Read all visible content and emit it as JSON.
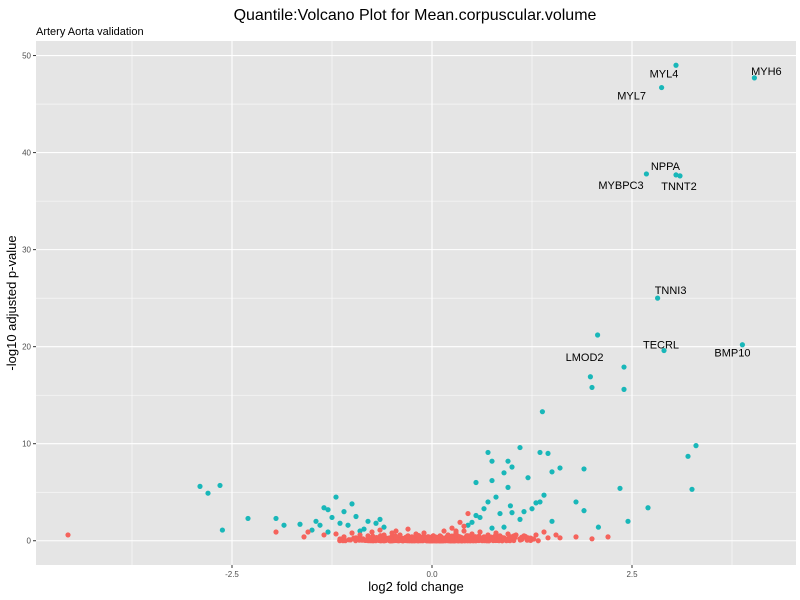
{
  "chart_data": {
    "type": "scatter",
    "title": "Quantile:Volcano Plot for Mean.corpuscular.volume",
    "subtitle": "Artery Aorta validation",
    "xlabel": "log2 fold change",
    "ylabel": "-log10 adjusted p-value",
    "xlim": [
      -4.95,
      4.55
    ],
    "ylim": [
      -2.5,
      51.5
    ],
    "x_ticks": [
      -2.5,
      0.0,
      2.5
    ],
    "x_tick_labels": [
      "-2.5",
      "0.0",
      "2.5"
    ],
    "y_ticks": [
      0,
      10,
      20,
      30,
      40,
      50
    ],
    "y_tick_labels": [
      "0",
      "10",
      "20",
      "30",
      "40",
      "50"
    ],
    "grid": true,
    "legend": "none",
    "colors": {
      "panel": "#e5e5e5",
      "grid_major": "#ffffff",
      "significant": "#19b7b9",
      "not_significant": "#f5635c"
    },
    "series": [
      {
        "color_key": "significant",
        "points": [
          [
            3.05,
            49.0
          ],
          [
            4.03,
            47.7
          ],
          [
            2.87,
            46.7
          ],
          [
            2.68,
            37.8
          ],
          [
            3.05,
            37.7
          ],
          [
            3.1,
            37.6
          ],
          [
            2.82,
            25.0
          ],
          [
            2.07,
            21.2
          ],
          [
            3.88,
            20.2
          ],
          [
            2.9,
            19.6
          ],
          [
            2.4,
            17.9
          ],
          [
            1.98,
            16.9
          ],
          [
            2.0,
            15.8
          ],
          [
            2.4,
            15.6
          ],
          [
            1.38,
            13.3
          ],
          [
            3.3,
            9.8
          ],
          [
            3.2,
            8.7
          ],
          [
            3.25,
            5.3
          ],
          [
            2.35,
            5.4
          ],
          [
            2.7,
            3.4
          ],
          [
            2.45,
            2.0
          ],
          [
            2.08,
            1.4
          ],
          [
            1.9,
            7.4
          ],
          [
            1.8,
            4.0
          ],
          [
            1.9,
            3.1
          ],
          [
            1.6,
            7.5
          ],
          [
            1.5,
            2.0
          ],
          [
            1.35,
            9.1
          ],
          [
            1.1,
            9.6
          ],
          [
            1.0,
            7.6
          ],
          [
            0.95,
            8.2
          ],
          [
            0.9,
            7.0
          ],
          [
            0.75,
            8.2
          ],
          [
            0.7,
            9.1
          ],
          [
            0.75,
            6.2
          ],
          [
            1.2,
            6.5
          ],
          [
            0.95,
            5.5
          ],
          [
            0.98,
            3.6
          ],
          [
            1.15,
            3.0
          ],
          [
            1.3,
            3.9
          ],
          [
            1.4,
            4.7
          ],
          [
            1.35,
            4.0
          ],
          [
            1.25,
            3.3
          ],
          [
            1.1,
            2.2
          ],
          [
            1.0,
            2.9
          ],
          [
            0.8,
            4.5
          ],
          [
            0.7,
            4.0
          ],
          [
            0.55,
            6.0
          ],
          [
            0.6,
            2.4
          ],
          [
            0.45,
            1.6
          ],
          [
            1.45,
            9.0
          ],
          [
            1.5,
            7.1
          ],
          [
            0.9,
            1.4
          ],
          [
            0.85,
            2.8
          ],
          [
            -2.9,
            5.6
          ],
          [
            -2.8,
            4.9
          ],
          [
            -2.65,
            5.7
          ],
          [
            -2.62,
            1.1
          ],
          [
            -2.3,
            2.3
          ],
          [
            -1.95,
            2.3
          ],
          [
            -1.85,
            1.6
          ],
          [
            -1.65,
            1.7
          ],
          [
            -1.2,
            4.5
          ],
          [
            -1.35,
            3.4
          ],
          [
            -1.3,
            3.2
          ],
          [
            -1.45,
            2.0
          ],
          [
            -1.1,
            3.0
          ],
          [
            -1.0,
            3.8
          ],
          [
            -1.15,
            1.8
          ],
          [
            -0.95,
            2.5
          ],
          [
            -0.8,
            2.0
          ],
          [
            -1.05,
            1.6
          ],
          [
            -0.7,
            1.8
          ],
          [
            -0.85,
            1.2
          ],
          [
            -1.25,
            2.4
          ],
          [
            -1.4,
            1.6
          ],
          [
            -1.5,
            1.1
          ],
          [
            -0.65,
            2.2
          ],
          [
            -0.9,
            1.0
          ],
          [
            -1.3,
            0.9
          ],
          [
            -0.6,
            1.4
          ],
          [
            0.5,
            1.9
          ],
          [
            0.55,
            2.6
          ],
          [
            0.65,
            3.3
          ],
          [
            0.75,
            1.3
          ]
        ]
      },
      {
        "color_key": "not_significant",
        "points": [
          [
            -4.55,
            0.6
          ],
          [
            -1.95,
            0.9
          ],
          [
            -1.6,
            0.4
          ],
          [
            -1.55,
            0.9
          ],
          [
            -1.35,
            0.6
          ],
          [
            -1.2,
            0.7
          ],
          [
            -1.1,
            0.4
          ],
          [
            -1.0,
            0.8
          ],
          [
            -0.95,
            0.3
          ],
          [
            -0.9,
            0.6
          ],
          [
            -0.8,
            0.5
          ],
          [
            -0.75,
            0.9
          ],
          [
            -0.7,
            0.3
          ],
          [
            -0.6,
            0.6
          ],
          [
            -0.55,
            0.2
          ],
          [
            -0.5,
            0.8
          ],
          [
            -0.45,
            0.4
          ],
          [
            -0.4,
            0.6
          ],
          [
            -0.35,
            0.2
          ],
          [
            -0.3,
            0.5
          ],
          [
            -0.25,
            0.3
          ],
          [
            -0.2,
            0.7
          ],
          [
            -0.15,
            0.1
          ],
          [
            -0.1,
            0.4
          ],
          [
            -0.05,
            0.2
          ],
          [
            0.0,
            0.1
          ],
          [
            0.05,
            0.3
          ],
          [
            0.1,
            0.5
          ],
          [
            0.15,
            0.2
          ],
          [
            0.2,
            0.6
          ],
          [
            0.25,
            0.3
          ],
          [
            0.3,
            0.8
          ],
          [
            0.35,
            0.4
          ],
          [
            0.4,
            1.0
          ],
          [
            0.45,
            0.5
          ],
          [
            0.5,
            0.7
          ],
          [
            0.55,
            0.3
          ],
          [
            0.6,
            0.9
          ],
          [
            0.65,
            0.4
          ],
          [
            0.7,
            0.6
          ],
          [
            0.75,
            0.2
          ],
          [
            0.8,
            0.8
          ],
          [
            0.85,
            0.5
          ],
          [
            0.9,
            0.3
          ],
          [
            0.95,
            0.7
          ],
          [
            1.0,
            0.4
          ],
          [
            1.05,
            0.6
          ],
          [
            1.1,
            0.2
          ],
          [
            1.15,
            0.5
          ],
          [
            1.2,
            0.3
          ],
          [
            1.3,
            0.6
          ],
          [
            1.4,
            0.9
          ],
          [
            1.45,
            0.3
          ],
          [
            1.55,
            0.6
          ],
          [
            1.6,
            0.3
          ],
          [
            1.8,
            0.4
          ],
          [
            2.0,
            0.2
          ],
          [
            2.2,
            0.4
          ],
          [
            0.25,
            1.3
          ],
          [
            0.35,
            1.9
          ],
          [
            0.45,
            2.8
          ],
          [
            0.4,
            1.5
          ],
          [
            0.3,
            1.0
          ],
          [
            -0.3,
            1.2
          ],
          [
            -0.1,
            0.8
          ],
          [
            0.15,
            1.0
          ],
          [
            -0.45,
            1.0
          ],
          [
            -0.65,
            1.1
          ]
        ],
        "band": {
          "x_range": [
            -1.35,
            1.45
          ],
          "y_range": [
            0.0,
            0.55
          ]
        }
      }
    ],
    "annotations": [
      {
        "label": "MYH6",
        "x": 4.03,
        "y": 47.7
      },
      {
        "label": "MYL4",
        "x": 3.05,
        "y": 49.0
      },
      {
        "label": "MYL7",
        "x": 2.87,
        "y": 46.7
      },
      {
        "label": "NPPA",
        "x": 2.68,
        "y": 37.8
      },
      {
        "label": "MYBPC3",
        "x": 3.05,
        "y": 37.7
      },
      {
        "label": "TNNT2",
        "x": 3.1,
        "y": 37.6
      },
      {
        "label": "TNNI3",
        "x": 2.82,
        "y": 25.0
      },
      {
        "label": "LMOD2",
        "x": 2.07,
        "y": 21.2
      },
      {
        "label": "TECRL",
        "x": 2.9,
        "y": 19.6
      },
      {
        "label": "BMP10",
        "x": 3.88,
        "y": 20.2
      }
    ]
  }
}
